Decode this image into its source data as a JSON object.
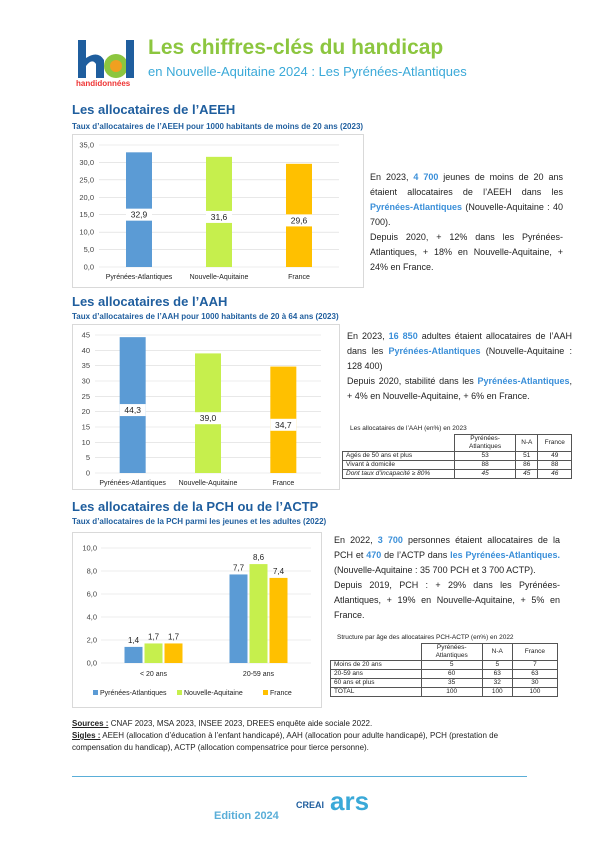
{
  "header": {
    "logo_text": "handidonnées",
    "title": "Les chiffres-clés du handicap",
    "subtitle_prefix": "en Nouvelle-Aquitaine 2024 : ",
    "subtitle_dept": "Les Pyrénées-Atlantiques"
  },
  "colors": {
    "pa": "#5b9bd5",
    "na": "#c6ef4d",
    "fr": "#ffc000",
    "title": "#8cc63f",
    "section": "#1f5e9e",
    "highlight": "#3a8fd9"
  },
  "aeeh": {
    "heading": "Les allocataires de l’AEEH",
    "chart_title": "Taux d’allocataires de l’AEEH pour 1000 habitants de moins de 20 ans (2023)",
    "p1": "En 2023, ",
    "p1_num": "4 700",
    "p1_rest": " jeunes de moins de 20 ans étaient allocataires de l’AEEH dans les ",
    "p1_dept": "Pyrénées-Atlantiques",
    "p1_end": " (Nouvelle-Aquitaine : 40 700).",
    "p2": "Depuis 2020, + 12% dans les Pyrénées-Atlantiques, + 18% en Nouvelle-Aquitaine, + 24% en France."
  },
  "aah": {
    "heading": "Les allocataires de l’AAH",
    "chart_title": "Taux d’allocataires de l’AAH pour 1000 habitants de 20 à 64 ans (2023)",
    "p1": "En 2023, ",
    "p1_num": "16 850",
    "p1_rest": " adultes étaient allocataires de l’AAH dans les ",
    "p1_dept": "Pyrénées-Atlantiques",
    "p1_end": " (Nouvelle-Aquitaine : 128 400)",
    "p2": "Depuis 2020, stabilité dans les ",
    "p2_dept": "Pyrénées-Atlantiques",
    "p2_end": ", + 4% en Nouvelle-Aquitaine, + 6% en France.",
    "table_caption": "Les allocataires de l’AAH (en%) en 2023",
    "table_headers": [
      "",
      "Pyrénées-Atlantiques",
      "N-A",
      "France"
    ],
    "table_rows": [
      [
        "Agés de 50 ans et plus",
        "53",
        "51",
        "49"
      ],
      [
        "Vivant à domicile",
        "88",
        "86",
        "88"
      ],
      [
        "Dont taux d’incapacité ≥ 80%",
        "45",
        "45",
        "46"
      ]
    ]
  },
  "pch": {
    "heading": "Les allocataires de la PCH ou de l’ACTP",
    "chart_title": "Taux d’allocataires de la PCH parmi les jeunes et les adultes (2022)",
    "p1": "En 2022, ",
    "p1_num": "3 700",
    "p1_rest": " personnes étaient allocataires de la PCH et ",
    "p1_num2": "470",
    "p1_rest2": " de l’ACTP dans ",
    "p1_dept": "les Pyrénées-Atlantiques.",
    "p1_end": " (Nouvelle-Aquitaine : 35 700 PCH et 3 700 ACTP).",
    "p2": "Depuis 2019, PCH : + 29% dans les Pyrénées-Atlantiques, + 19% en Nouvelle-Aquitaine, + 5% en France.",
    "table_caption": "Structure par âge des allocataires PCH-ACTP (en%) en 2022",
    "table_headers": [
      "",
      "Pyrénées-Atlantiques",
      "N-A",
      "France"
    ],
    "table_rows": [
      [
        "Moins de 20 ans",
        "5",
        "5",
        "7"
      ],
      [
        "20-59 ans",
        "60",
        "63",
        "63"
      ],
      [
        "60 ans et plus",
        "35",
        "32",
        "30"
      ],
      [
        "TOTAL",
        "100",
        "100",
        "100"
      ]
    ]
  },
  "footer": {
    "sources_label": "Sources :",
    "sources": " CNAF 2023, MSA 2023, INSEE 2023, DREES enquête aide sociale 2022.",
    "sigles_label": "Sigles :",
    "sigles": " AEEH (allocation d’éducation à l’enfant handicapé), AAH (allocation pour adulte handicapé), PCH (prestation de compensation du handicap), ACTP (allocation compensatrice pour tierce personne).",
    "edition": "Edition 2024",
    "logo1": "CREAI",
    "logo2": "ars"
  },
  "chart_data": [
    {
      "type": "bar",
      "categories": [
        "Pyrénées-Atlantiques",
        "Nouvelle-Aquitaine",
        "France"
      ],
      "values": [
        32.9,
        31.6,
        29.6
      ],
      "labels": [
        "32,9",
        "31,6",
        "29,6"
      ],
      "ylim": [
        0,
        35
      ],
      "yticks": [
        "0,0",
        "5,0",
        "10,0",
        "15,0",
        "20,0",
        "25,0",
        "30,0",
        "35,0"
      ],
      "grid": true
    },
    {
      "type": "bar",
      "categories": [
        "Pyrénées-Atlantiques",
        "Nouvelle-Aquitaine",
        "France"
      ],
      "values": [
        44.3,
        39.0,
        34.7
      ],
      "labels": [
        "44,3",
        "39,0",
        "34,7"
      ],
      "ylim": [
        0,
        45
      ],
      "yticks": [
        "0",
        "5",
        "10",
        "15",
        "20",
        "25",
        "30",
        "35",
        "40",
        "45"
      ],
      "grid": true
    },
    {
      "type": "bar",
      "categories": [
        "< 20 ans",
        "20-59 ans"
      ],
      "series": [
        {
          "name": "Pyrénées-Atlantiques",
          "values": [
            1.4,
            7.7
          ],
          "labels": [
            "1,4",
            "7,7"
          ]
        },
        {
          "name": "Nouvelle-Aquitaine",
          "values": [
            1.7,
            8.6
          ],
          "labels": [
            "1,7",
            "8,6"
          ]
        },
        {
          "name": "France",
          "values": [
            1.7,
            7.4
          ],
          "labels": [
            "1,7",
            "7,4"
          ]
        }
      ],
      "ylim": [
        0,
        10
      ],
      "yticks": [
        "0,0",
        "2,0",
        "4,0",
        "6,0",
        "8,0",
        "10,0"
      ],
      "legend": "bottom",
      "grid": true
    }
  ]
}
